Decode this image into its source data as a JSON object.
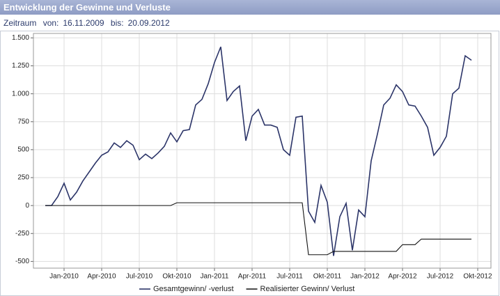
{
  "header": {
    "title": "Entwicklung der Gewinne und Verluste"
  },
  "period": {
    "label": "Zeitraum",
    "from_label": "von:",
    "from": "16.11.2009",
    "to_label": "bis:",
    "to": "20.09.2012"
  },
  "chart_data": {
    "type": "line",
    "categories": [
      null,
      null,
      null,
      "Jan-2010",
      null,
      null,
      null,
      null,
      null,
      "Apr-2010",
      null,
      null,
      null,
      null,
      null,
      "Jul-2010",
      null,
      null,
      null,
      null,
      null,
      "Okt-2010",
      null,
      null,
      null,
      null,
      null,
      "Jan-2011",
      null,
      null,
      null,
      null,
      null,
      "Apr-2011",
      null,
      null,
      null,
      null,
      null,
      "Jul-2011",
      null,
      null,
      null,
      null,
      null,
      "Okt-2011",
      null,
      null,
      null,
      null,
      null,
      "Jan-2012",
      null,
      null,
      null,
      null,
      null,
      "Apr-2012",
      null,
      null,
      null,
      null,
      null,
      "Jul-2012",
      null,
      null,
      null,
      null,
      null,
      "Okt-2012"
    ],
    "series": [
      {
        "name": "Gesamtgewinn/ -verlust",
        "color": "#2b3468",
        "values": [
          0,
          0,
          80,
          200,
          50,
          120,
          220,
          300,
          380,
          450,
          480,
          560,
          520,
          580,
          540,
          410,
          460,
          420,
          470,
          530,
          650,
          570,
          670,
          680,
          900,
          950,
          1090,
          1280,
          1420,
          940,
          1020,
          1070,
          580,
          800,
          860,
          720,
          720,
          700,
          500,
          450,
          790,
          800,
          -50,
          -150,
          180,
          30,
          -450,
          -100,
          20,
          -400,
          -40,
          -100,
          400,
          640,
          900,
          960,
          1080,
          1020,
          900,
          890,
          800,
          700,
          450,
          520,
          620,
          1000,
          1050,
          1340,
          1300,
          null
        ]
      },
      {
        "name": "Realisierter Gewinn/ Verlust",
        "color": "#111111",
        "values": [
          0,
          0,
          0,
          0,
          0,
          0,
          0,
          0,
          0,
          0,
          0,
          0,
          0,
          0,
          0,
          0,
          0,
          0,
          0,
          0,
          0,
          25,
          25,
          25,
          25,
          25,
          25,
          25,
          25,
          25,
          25,
          25,
          25,
          25,
          25,
          25,
          25,
          25,
          25,
          25,
          25,
          25,
          -440,
          -440,
          -440,
          -440,
          -410,
          -410,
          -410,
          -410,
          -410,
          -410,
          -410,
          -410,
          -410,
          -410,
          -410,
          -350,
          -350,
          -350,
          -300,
          -300,
          -300,
          -300,
          -300,
          -300,
          -300,
          -300,
          -300,
          null
        ]
      }
    ],
    "ylim": [
      -560,
      1540
    ],
    "yticks": [
      -500,
      -250,
      0,
      250,
      500,
      750,
      {
        "value": 1000,
        "label": "1.000"
      },
      {
        "value": 1250,
        "label": "1.250"
      },
      {
        "value": 1500,
        "label": "1.500"
      }
    ],
    "grid": true,
    "legend": "bottom"
  }
}
